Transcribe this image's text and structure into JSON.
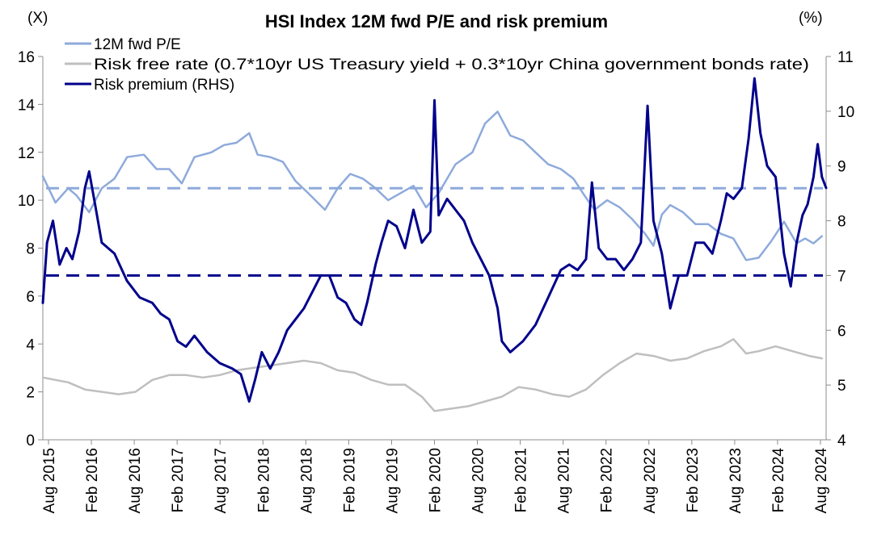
{
  "chart_data": {
    "type": "line",
    "title": "HSI Index 12M fwd P/E and risk premium",
    "left_axis_unit": "(X)",
    "right_axis_unit": "(%)",
    "ylim": [
      0,
      16
    ],
    "y_ticks": [
      "0",
      "2",
      "4",
      "6",
      "8",
      "10",
      "12",
      "14",
      "16"
    ],
    "ylim_right": [
      4,
      11
    ],
    "y_ticks_right": [
      "4",
      "5",
      "6",
      "7",
      "8",
      "9",
      "10",
      "11"
    ],
    "x_ticks": [
      "Aug 2015",
      "Feb 2016",
      "Aug 2016",
      "Feb 2017",
      "Aug 2017",
      "Feb 2018",
      "Aug 2018",
      "Feb 2019",
      "Aug 2019",
      "Feb 2020",
      "Aug 2020",
      "Feb 2021",
      "Aug 2021",
      "Feb 2022",
      "Aug 2022",
      "Feb 2023",
      "Aug 2023",
      "Feb 2024",
      "Aug 2024"
    ],
    "legend": [
      {
        "name": "12M fwd P/E",
        "color": "#8eaadb"
      },
      {
        "name": "Risk free rate (0.7*10yr US Treasury yield + 0.3*10yr China government bonds rate)",
        "color": "#bfbfbf"
      },
      {
        "name": "Risk premium (RHS)",
        "color": "#00008b"
      }
    ],
    "reference_lines": [
      {
        "series": "12M fwd P/E average",
        "axis": "left",
        "value": 10.5,
        "color": "#8eaadb",
        "style": "dashed"
      },
      {
        "series": "Risk premium average",
        "axis": "right",
        "value": 7.0,
        "color": "#00008b",
        "style": "dashed"
      }
    ],
    "series": [
      {
        "name": "12M fwd P/E",
        "axis": "left",
        "color": "#8eaadb",
        "points": [
          [
            2015.6,
            11.0
          ],
          [
            2015.75,
            9.9
          ],
          [
            2015.9,
            10.5
          ],
          [
            2016.0,
            10.2
          ],
          [
            2016.15,
            9.5
          ],
          [
            2016.3,
            10.5
          ],
          [
            2016.45,
            10.9
          ],
          [
            2016.6,
            11.8
          ],
          [
            2016.8,
            11.9
          ],
          [
            2016.95,
            11.3
          ],
          [
            2017.1,
            11.3
          ],
          [
            2017.25,
            10.7
          ],
          [
            2017.4,
            11.8
          ],
          [
            2017.6,
            12.0
          ],
          [
            2017.75,
            12.3
          ],
          [
            2017.9,
            12.4
          ],
          [
            2018.05,
            12.8
          ],
          [
            2018.15,
            11.9
          ],
          [
            2018.3,
            11.8
          ],
          [
            2018.45,
            11.6
          ],
          [
            2018.6,
            10.8
          ],
          [
            2018.75,
            10.3
          ],
          [
            2018.95,
            9.6
          ],
          [
            2019.1,
            10.5
          ],
          [
            2019.25,
            11.1
          ],
          [
            2019.4,
            10.9
          ],
          [
            2019.55,
            10.5
          ],
          [
            2019.7,
            10.0
          ],
          [
            2019.85,
            10.3
          ],
          [
            2020.0,
            10.6
          ],
          [
            2020.15,
            9.7
          ],
          [
            2020.3,
            10.3
          ],
          [
            2020.5,
            11.5
          ],
          [
            2020.7,
            12.0
          ],
          [
            2020.85,
            13.2
          ],
          [
            2021.0,
            13.7
          ],
          [
            2021.15,
            12.7
          ],
          [
            2021.3,
            12.5
          ],
          [
            2021.45,
            12.0
          ],
          [
            2021.6,
            11.5
          ],
          [
            2021.75,
            11.3
          ],
          [
            2021.9,
            10.9
          ],
          [
            2022.05,
            10.1
          ],
          [
            2022.15,
            9.6
          ],
          [
            2022.3,
            10.0
          ],
          [
            2022.45,
            9.7
          ],
          [
            2022.6,
            9.2
          ],
          [
            2022.75,
            8.6
          ],
          [
            2022.85,
            8.1
          ],
          [
            2022.95,
            9.4
          ],
          [
            2023.05,
            9.8
          ],
          [
            2023.2,
            9.5
          ],
          [
            2023.35,
            9.0
          ],
          [
            2023.5,
            9.0
          ],
          [
            2023.65,
            8.6
          ],
          [
            2023.8,
            8.4
          ],
          [
            2023.95,
            7.5
          ],
          [
            2024.1,
            7.6
          ],
          [
            2024.25,
            8.3
          ],
          [
            2024.4,
            9.1
          ],
          [
            2024.55,
            8.2
          ],
          [
            2024.65,
            8.4
          ],
          [
            2024.75,
            8.2
          ],
          [
            2024.85,
            8.5
          ]
        ]
      },
      {
        "name": "Risk free rate (0.7*10yr US Treasury yield + 0.3*10yr China government bonds rate)",
        "axis": "left",
        "color": "#bfbfbf",
        "points": [
          [
            2015.6,
            2.6
          ],
          [
            2015.75,
            2.5
          ],
          [
            2015.9,
            2.4
          ],
          [
            2016.1,
            2.1
          ],
          [
            2016.3,
            2.0
          ],
          [
            2016.5,
            1.9
          ],
          [
            2016.7,
            2.0
          ],
          [
            2016.9,
            2.5
          ],
          [
            2017.1,
            2.7
          ],
          [
            2017.3,
            2.7
          ],
          [
            2017.5,
            2.6
          ],
          [
            2017.7,
            2.7
          ],
          [
            2017.9,
            2.9
          ],
          [
            2018.1,
            3.0
          ],
          [
            2018.3,
            3.1
          ],
          [
            2018.5,
            3.2
          ],
          [
            2018.7,
            3.3
          ],
          [
            2018.9,
            3.2
          ],
          [
            2019.1,
            2.9
          ],
          [
            2019.3,
            2.8
          ],
          [
            2019.5,
            2.5
          ],
          [
            2019.7,
            2.3
          ],
          [
            2019.9,
            2.3
          ],
          [
            2020.1,
            1.8
          ],
          [
            2020.25,
            1.2
          ],
          [
            2020.45,
            1.3
          ],
          [
            2020.65,
            1.4
          ],
          [
            2020.85,
            1.6
          ],
          [
            2021.05,
            1.8
          ],
          [
            2021.25,
            2.2
          ],
          [
            2021.45,
            2.1
          ],
          [
            2021.65,
            1.9
          ],
          [
            2021.85,
            1.8
          ],
          [
            2022.05,
            2.1
          ],
          [
            2022.25,
            2.7
          ],
          [
            2022.45,
            3.2
          ],
          [
            2022.65,
            3.6
          ],
          [
            2022.85,
            3.5
          ],
          [
            2023.05,
            3.3
          ],
          [
            2023.25,
            3.4
          ],
          [
            2023.45,
            3.7
          ],
          [
            2023.65,
            3.9
          ],
          [
            2023.8,
            4.2
          ],
          [
            2023.95,
            3.6
          ],
          [
            2024.1,
            3.7
          ],
          [
            2024.3,
            3.9
          ],
          [
            2024.5,
            3.7
          ],
          [
            2024.7,
            3.5
          ],
          [
            2024.85,
            3.4
          ]
        ]
      },
      {
        "name": "Risk premium (RHS)",
        "axis": "right",
        "color": "#00008b",
        "points": [
          [
            2015.6,
            6.5
          ],
          [
            2015.65,
            7.6
          ],
          [
            2015.72,
            8.0
          ],
          [
            2015.8,
            7.2
          ],
          [
            2015.88,
            7.5
          ],
          [
            2015.95,
            7.3
          ],
          [
            2016.03,
            7.8
          ],
          [
            2016.1,
            8.6
          ],
          [
            2016.15,
            8.9
          ],
          [
            2016.22,
            8.3
          ],
          [
            2016.3,
            7.6
          ],
          [
            2016.45,
            7.4
          ],
          [
            2016.6,
            6.9
          ],
          [
            2016.75,
            6.6
          ],
          [
            2016.9,
            6.5
          ],
          [
            2017.0,
            6.3
          ],
          [
            2017.1,
            6.2
          ],
          [
            2017.2,
            5.8
          ],
          [
            2017.3,
            5.7
          ],
          [
            2017.4,
            5.9
          ],
          [
            2017.55,
            5.6
          ],
          [
            2017.7,
            5.4
          ],
          [
            2017.85,
            5.3
          ],
          [
            2017.95,
            5.2
          ],
          [
            2018.05,
            4.7
          ],
          [
            2018.12,
            5.1
          ],
          [
            2018.2,
            5.6
          ],
          [
            2018.3,
            5.3
          ],
          [
            2018.4,
            5.6
          ],
          [
            2018.5,
            6.0
          ],
          [
            2018.6,
            6.2
          ],
          [
            2018.7,
            6.4
          ],
          [
            2018.8,
            6.7
          ],
          [
            2018.9,
            7.0
          ],
          [
            2019.0,
            7.0
          ],
          [
            2019.1,
            6.6
          ],
          [
            2019.2,
            6.5
          ],
          [
            2019.3,
            6.2
          ],
          [
            2019.38,
            6.1
          ],
          [
            2019.45,
            6.5
          ],
          [
            2019.55,
            7.2
          ],
          [
            2019.62,
            7.6
          ],
          [
            2019.7,
            8.0
          ],
          [
            2019.8,
            7.9
          ],
          [
            2019.9,
            7.5
          ],
          [
            2020.0,
            8.2
          ],
          [
            2020.1,
            7.6
          ],
          [
            2020.2,
            7.8
          ],
          [
            2020.25,
            10.2
          ],
          [
            2020.3,
            8.1
          ],
          [
            2020.4,
            8.4
          ],
          [
            2020.5,
            8.2
          ],
          [
            2020.6,
            8.0
          ],
          [
            2020.7,
            7.6
          ],
          [
            2020.8,
            7.3
          ],
          [
            2020.9,
            7.0
          ],
          [
            2021.0,
            6.4
          ],
          [
            2021.05,
            5.8
          ],
          [
            2021.15,
            5.6
          ],
          [
            2021.3,
            5.8
          ],
          [
            2021.45,
            6.1
          ],
          [
            2021.6,
            6.6
          ],
          [
            2021.75,
            7.1
          ],
          [
            2021.85,
            7.2
          ],
          [
            2021.95,
            7.1
          ],
          [
            2022.05,
            7.3
          ],
          [
            2022.12,
            8.7
          ],
          [
            2022.2,
            7.5
          ],
          [
            2022.3,
            7.3
          ],
          [
            2022.4,
            7.3
          ],
          [
            2022.5,
            7.1
          ],
          [
            2022.6,
            7.3
          ],
          [
            2022.7,
            7.6
          ],
          [
            2022.78,
            10.1
          ],
          [
            2022.85,
            8.0
          ],
          [
            2022.95,
            7.4
          ],
          [
            2023.05,
            6.4
          ],
          [
            2023.15,
            7.0
          ],
          [
            2023.25,
            7.0
          ],
          [
            2023.35,
            7.6
          ],
          [
            2023.45,
            7.6
          ],
          [
            2023.55,
            7.4
          ],
          [
            2023.65,
            8.0
          ],
          [
            2023.72,
            8.5
          ],
          [
            2023.8,
            8.4
          ],
          [
            2023.9,
            8.6
          ],
          [
            2023.98,
            9.5
          ],
          [
            2024.05,
            10.6
          ],
          [
            2024.12,
            9.6
          ],
          [
            2024.2,
            9.0
          ],
          [
            2024.3,
            8.8
          ],
          [
            2024.4,
            7.4
          ],
          [
            2024.48,
            6.8
          ],
          [
            2024.55,
            7.6
          ],
          [
            2024.62,
            8.1
          ],
          [
            2024.68,
            8.3
          ],
          [
            2024.75,
            8.8
          ],
          [
            2024.8,
            9.4
          ],
          [
            2024.85,
            8.8
          ],
          [
            2024.9,
            8.6
          ]
        ]
      }
    ]
  }
}
